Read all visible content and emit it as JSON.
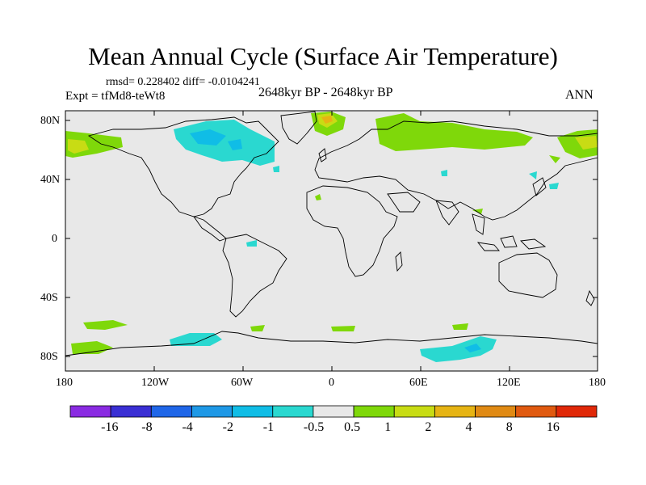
{
  "title": "Mean Annual Cycle (Surface Air Temperature)",
  "stats": "rmsd= 0.228402 diff= -0.0104241",
  "experiment": "Expt = tfMd8-teWt8",
  "period": "2648kyr BP - 2648kyr BP",
  "season": "ANN",
  "lat_ticks": [
    "80N",
    "40N",
    "0",
    "40S",
    "80S"
  ],
  "lon_ticks": [
    "180",
    "120W",
    "60W",
    "0",
    "60E",
    "120E",
    "180"
  ],
  "colorbar": {
    "labels": [
      "-16",
      "-8",
      "-4",
      "-2",
      "-1",
      "-0.5",
      "0.5",
      "1",
      "2",
      "4",
      "8",
      "16"
    ],
    "colors": [
      "#8a2be2",
      "#3a2fd4",
      "#1f66e8",
      "#1e98e6",
      "#10bde6",
      "#2ad8d0",
      "#e8e8e8",
      "#7fd80a",
      "#c8dc14",
      "#e6b414",
      "#e08a14",
      "#e05a10",
      "#e02808"
    ]
  },
  "background_color": "#e8e8e8"
}
